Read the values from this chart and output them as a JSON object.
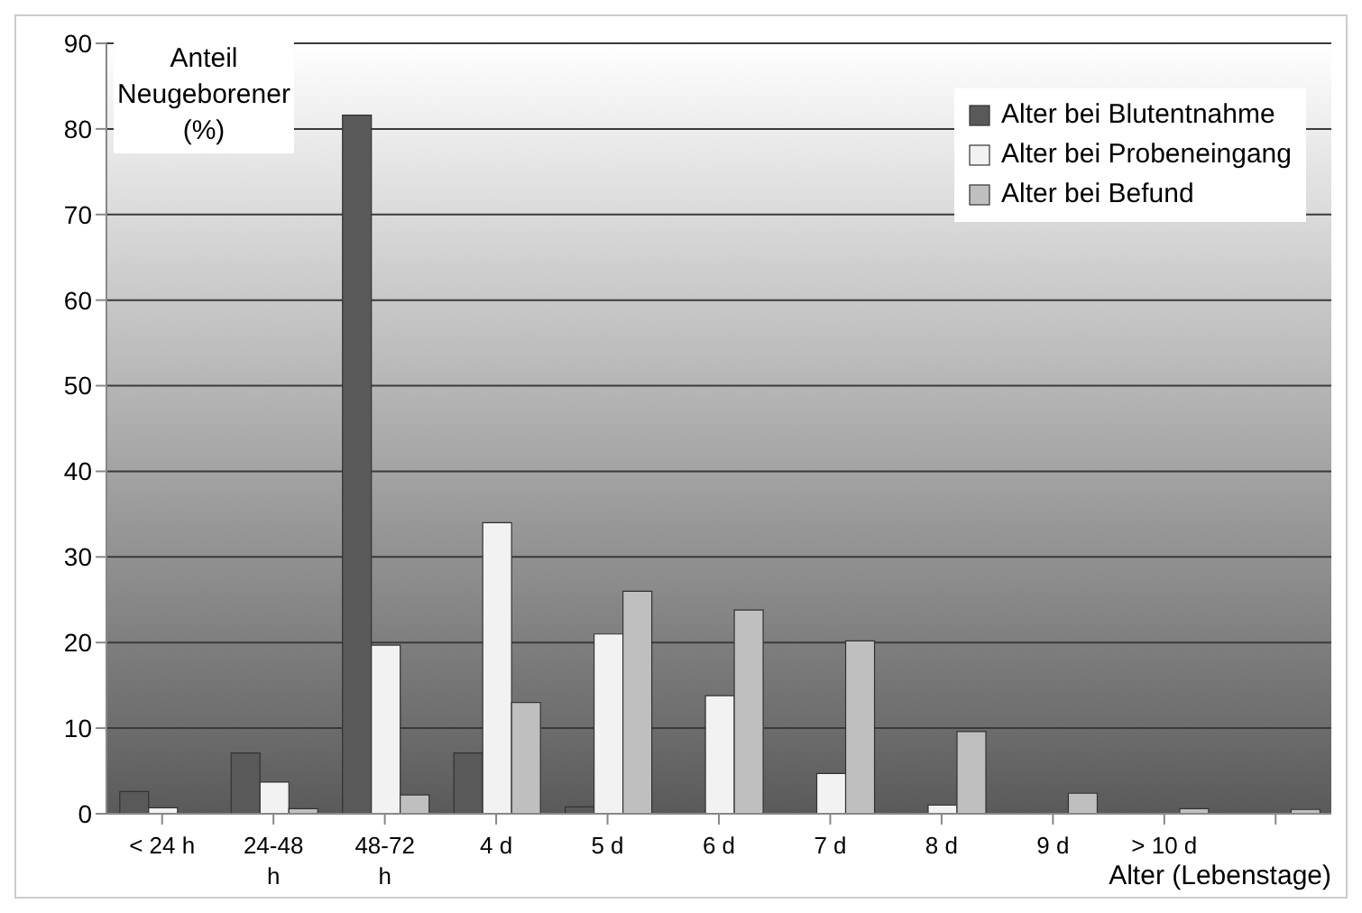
{
  "chart_data": {
    "type": "bar",
    "ylabel": "Anteil Neugeborener (%)",
    "xlabel": "Alter (Lebenstage)",
    "categories": [
      "< 24 h",
      "24-48 h",
      "48-72 h",
      "4 d",
      "5 d",
      "6 d",
      "7 d",
      "8 d",
      "9 d",
      "> 10 d",
      null
    ],
    "series": [
      {
        "name": "Alter bei Blutentnahme",
        "color": "#595959",
        "values": [
          2.6,
          7.1,
          81.6,
          7.1,
          0.8,
          null,
          0,
          0,
          0,
          0,
          0
        ]
      },
      {
        "name": "Alter bei Probeneingang",
        "color": "#f2f2f2",
        "values": [
          0.7,
          3.7,
          19.7,
          34,
          21,
          13.8,
          4.7,
          1,
          0,
          0,
          0
        ]
      },
      {
        "name": "Alter bei Befund",
        "color": "#bfbfbf",
        "values": [
          0,
          0.6,
          2.2,
          13,
          26,
          23.8,
          20.2,
          9.6,
          2.4,
          0.6,
          0.5
        ]
      }
    ],
    "ylim": [
      0,
      90
    ],
    "yticks": [
      0,
      10,
      20,
      30,
      40,
      50,
      60,
      70,
      80,
      90
    ],
    "grid": "y",
    "legend": "top right"
  }
}
